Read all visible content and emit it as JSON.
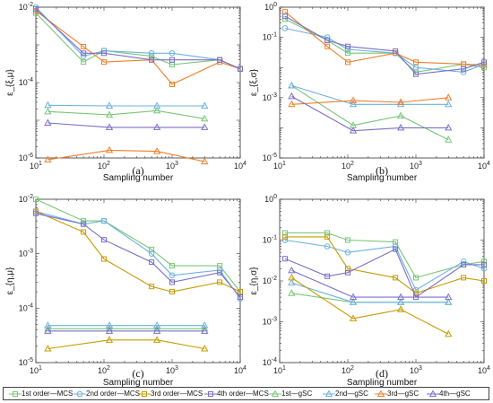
{
  "legend": [
    {
      "label": "1st order—MCS",
      "color": "#77c677",
      "marker": "square",
      "line": true
    },
    {
      "label": "2nd order—MCS",
      "color": "#6cb1e0",
      "marker": "circle",
      "line": true
    },
    {
      "label": "3rd order—MCS",
      "color": "#c69b00",
      "marker": "square",
      "line": true
    },
    {
      "label": "4th order—MCS",
      "color": "#7a6fc8",
      "marker": "square",
      "line": true
    },
    {
      "label": "1st—gSC",
      "color": "#77c677",
      "marker": "triangle",
      "line": true
    },
    {
      "label": "2nd—gSC",
      "color": "#6cb1e0",
      "marker": "triangle",
      "line": true
    },
    {
      "label": "3rd—gSC",
      "color": "#f07f2a",
      "marker": "triangle",
      "line": true
    },
    {
      "label": "4th—gSC",
      "color": "#7a6fc8",
      "marker": "triangle",
      "line": true
    }
  ],
  "chart_data": [
    {
      "panel_label": "(a)",
      "type": "line",
      "xlabel": "Sampling number",
      "ylabel": "ε_{ξ,μ}",
      "xscale": "log",
      "yscale": "log",
      "xlim": [
        10,
        10000
      ],
      "ylim": [
        1e-06,
        0.01
      ],
      "xticks": [
        "10^1",
        "10^2",
        "10^3",
        "10^4"
      ],
      "yticks": [
        "10^-6",
        "10^-4",
        "10^-2"
      ],
      "series": [
        {
          "name": "1st order—MCS",
          "x": [
            10,
            50,
            100,
            500,
            1000,
            5000,
            10000
          ],
          "y": [
            0.007,
            0.00035,
            0.0007,
            0.0005,
            0.0003,
            0.0004,
            0.00023
          ],
          "color": "#77c677",
          "marker": "square"
        },
        {
          "name": "2nd order—MCS",
          "x": [
            10,
            50,
            100,
            500,
            1000,
            5000,
            10000
          ],
          "y": [
            0.01,
            0.0005,
            0.0007,
            0.0006,
            0.0006,
            0.0004,
            0.00023
          ],
          "color": "#6cb1e0",
          "marker": "circle"
        },
        {
          "name": "3rd order—MCS",
          "x": [
            10,
            50,
            100,
            500,
            1000,
            5000,
            10000
          ],
          "y": [
            0.008,
            0.0009,
            0.00035,
            0.0004,
            9e-05,
            0.00035,
            0.00023
          ],
          "color": "#f07f2a",
          "marker": "square"
        },
        {
          "name": "4th order—MCS",
          "x": [
            10,
            50,
            100,
            500,
            1000,
            5000,
            10000
          ],
          "y": [
            0.009,
            0.0006,
            0.0006,
            0.0004,
            0.0004,
            0.0004,
            0.00023
          ],
          "color": "#7a6fc8",
          "marker": "square"
        },
        {
          "name": "1st—gSC",
          "x": [
            15,
            120,
            600,
            3000
          ],
          "y": [
            1.7e-05,
            1.4e-05,
            1.8e-05,
            1.1e-05
          ],
          "color": "#77c677",
          "marker": "triangle"
        },
        {
          "name": "2nd—gSC",
          "x": [
            15,
            120,
            600,
            3000
          ],
          "y": [
            2.5e-05,
            2.4e-05,
            2.4e-05,
            2.4e-05
          ],
          "color": "#6cb1e0",
          "marker": "triangle"
        },
        {
          "name": "3rd—gSC",
          "x": [
            15,
            120,
            600,
            3000
          ],
          "y": [
            9e-07,
            1.6e-06,
            1.5e-06,
            8e-07
          ],
          "color": "#f07f2a",
          "marker": "triangle"
        },
        {
          "name": "4th—gSC",
          "x": [
            15,
            120,
            600,
            3000
          ],
          "y": [
            8.5e-06,
            6.5e-06,
            6.5e-06,
            6.5e-06
          ],
          "color": "#7a6fc8",
          "marker": "triangle"
        }
      ]
    },
    {
      "panel_label": "(b)",
      "type": "line",
      "xlabel": "Sampling number",
      "ylabel": "ε_{ξ,σ}",
      "xscale": "log",
      "yscale": "log",
      "xlim": [
        10,
        10000
      ],
      "ylim": [
        1e-05,
        1
      ],
      "xticks": [
        "10^1",
        "10^2",
        "10^3",
        "10^4"
      ],
      "yticks": [
        "10^-5",
        "10^-3",
        "10^-1",
        "10^0"
      ],
      "series": [
        {
          "name": "1st order—MCS",
          "x": [
            12,
            50,
            100,
            500,
            1000,
            5000,
            10000
          ],
          "y": [
            0.4,
            0.08,
            0.03,
            0.03,
            0.007,
            0.013,
            0.01
          ],
          "color": "#77c677",
          "marker": "square"
        },
        {
          "name": "2nd order—MCS",
          "x": [
            12,
            50,
            100,
            500,
            1000,
            5000,
            10000
          ],
          "y": [
            0.2,
            0.1,
            0.04,
            0.03,
            0.01,
            0.007,
            0.013
          ],
          "color": "#6cb1e0",
          "marker": "circle"
        },
        {
          "name": "3rd order—MCS",
          "x": [
            12,
            50,
            100,
            500,
            1000,
            5000,
            10000
          ],
          "y": [
            0.7,
            0.05,
            0.015,
            0.03,
            0.015,
            0.013,
            0.012
          ],
          "color": "#f07f2a",
          "marker": "square"
        },
        {
          "name": "4th order—MCS",
          "x": [
            12,
            50,
            100,
            500,
            1000,
            5000,
            10000
          ],
          "y": [
            0.5,
            0.08,
            0.05,
            0.035,
            0.006,
            0.009,
            0.015
          ],
          "color": "#7a6fc8",
          "marker": "square"
        },
        {
          "name": "1st—gSC",
          "x": [
            15,
            120,
            600,
            3000
          ],
          "y": [
            0.0025,
            0.00012,
            0.00025,
            4e-05
          ],
          "color": "#77c677",
          "marker": "triangle"
        },
        {
          "name": "2nd—gSC",
          "x": [
            15,
            120,
            600,
            3000
          ],
          "y": [
            0.0025,
            0.0006,
            0.0006,
            0.0006
          ],
          "color": "#6cb1e0",
          "marker": "triangle"
        },
        {
          "name": "3rd—gSC",
          "x": [
            15,
            120,
            600,
            3000
          ],
          "y": [
            0.0006,
            0.0008,
            0.0007,
            0.001
          ],
          "color": "#f07f2a",
          "marker": "triangle"
        },
        {
          "name": "4th—gSC",
          "x": [
            15,
            120,
            600,
            3000
          ],
          "y": [
            0.0011,
            8e-05,
            0.0001,
            0.0001
          ],
          "color": "#7a6fc8",
          "marker": "triangle"
        }
      ]
    },
    {
      "panel_label": "(c)",
      "type": "line",
      "xlabel": "Sampling number",
      "ylabel": "ε_{η,μ}",
      "xscale": "log",
      "yscale": "log",
      "xlim": [
        10,
        10000
      ],
      "ylim": [
        1e-05,
        0.01
      ],
      "xticks": [
        "10^1",
        "10^2",
        "10^3",
        "10^4"
      ],
      "yticks": [
        "10^-5",
        "10^-4",
        "10^-3",
        "10^-2"
      ],
      "series": [
        {
          "name": "1st order—MCS",
          "x": [
            10,
            50,
            100,
            500,
            1000,
            5000,
            10000
          ],
          "y": [
            0.01,
            0.004,
            0.004,
            0.0012,
            0.0006,
            0.0006,
            0.0002
          ],
          "color": "#77c677",
          "marker": "square"
        },
        {
          "name": "2nd order—MCS",
          "x": [
            10,
            50,
            100,
            500,
            1000,
            5000,
            10000
          ],
          "y": [
            0.006,
            0.0035,
            0.004,
            0.001,
            0.0004,
            0.0005,
            0.00015
          ],
          "color": "#6cb1e0",
          "marker": "circle"
        },
        {
          "name": "3rd order—MCS",
          "x": [
            10,
            50,
            100,
            500,
            1000,
            5000,
            10000
          ],
          "y": [
            0.006,
            0.0025,
            0.0008,
            0.00025,
            0.0002,
            0.0003,
            0.0002
          ],
          "color": "#c69b00",
          "marker": "square"
        },
        {
          "name": "4th order—MCS",
          "x": [
            10,
            50,
            100,
            500,
            1000,
            5000,
            10000
          ],
          "y": [
            0.0055,
            0.0035,
            0.0018,
            0.0007,
            0.0003,
            0.00045,
            0.00016
          ],
          "color": "#7a6fc8",
          "marker": "square"
        },
        {
          "name": "1st—gSC",
          "x": [
            15,
            120,
            600,
            3000
          ],
          "y": [
            4.2e-05,
            4.2e-05,
            4.2e-05,
            4.2e-05
          ],
          "color": "#77c677",
          "marker": "triangle"
        },
        {
          "name": "2nd—gSC",
          "x": [
            15,
            120,
            600,
            3000
          ],
          "y": [
            4.8e-05,
            4.8e-05,
            4.8e-05,
            4.8e-05
          ],
          "color": "#6cb1e0",
          "marker": "triangle"
        },
        {
          "name": "3rd—gSC",
          "x": [
            15,
            120,
            600,
            3000
          ],
          "y": [
            1.8e-05,
            2.6e-05,
            2.6e-05,
            1.8e-05
          ],
          "color": "#c69b00",
          "marker": "triangle"
        },
        {
          "name": "4th—gSC",
          "x": [
            15,
            120,
            600,
            3000
          ],
          "y": [
            3.8e-05,
            3.8e-05,
            3.8e-05,
            3.8e-05
          ],
          "color": "#7a6fc8",
          "marker": "triangle"
        }
      ]
    },
    {
      "panel_label": "(d)",
      "type": "line",
      "xlabel": "Sampling number",
      "ylabel": "ε_{η,σ}",
      "xscale": "log",
      "yscale": "log",
      "xlim": [
        10,
        10000
      ],
      "ylim": [
        0.0001,
        1
      ],
      "xticks": [
        "10^1",
        "10^2",
        "10^3",
        "10^4"
      ],
      "yticks": [
        "10^-4",
        "10^-3",
        "10^-2",
        "10^-1",
        "10^0"
      ],
      "series": [
        {
          "name": "1st order—MCS",
          "x": [
            12,
            50,
            100,
            500,
            1000,
            5000,
            10000
          ],
          "y": [
            0.15,
            0.15,
            0.1,
            0.09,
            0.012,
            0.025,
            0.03
          ],
          "color": "#77c677",
          "marker": "square"
        },
        {
          "name": "2nd order—MCS",
          "x": [
            12,
            50,
            100,
            500,
            1000,
            5000,
            10000
          ],
          "y": [
            0.1,
            0.07,
            0.05,
            0.07,
            0.006,
            0.03,
            0.02
          ],
          "color": "#6cb1e0",
          "marker": "circle"
        },
        {
          "name": "3rd order—MCS",
          "x": [
            12,
            50,
            100,
            500,
            1000,
            5000,
            10000
          ],
          "y": [
            0.12,
            0.12,
            0.02,
            0.012,
            0.005,
            0.012,
            0.01
          ],
          "color": "#c69b00",
          "marker": "square"
        },
        {
          "name": "4th order—MCS",
          "x": [
            12,
            50,
            100,
            500,
            1000,
            5000,
            10000
          ],
          "y": [
            0.035,
            0.013,
            0.016,
            0.06,
            0.004,
            0.025,
            0.025
          ],
          "color": "#7a6fc8",
          "marker": "square"
        },
        {
          "name": "1st—gSC",
          "x": [
            15,
            120,
            600,
            3000
          ],
          "y": [
            0.005,
            0.003,
            0.003,
            0.003
          ],
          "color": "#77c677",
          "marker": "triangle"
        },
        {
          "name": "2nd—gSC",
          "x": [
            15,
            120,
            600,
            3000
          ],
          "y": [
            0.009,
            0.003,
            0.003,
            0.003
          ],
          "color": "#6cb1e0",
          "marker": "triangle"
        },
        {
          "name": "3rd—gSC",
          "x": [
            15,
            120,
            600,
            3000
          ],
          "y": [
            0.012,
            0.0012,
            0.002,
            0.0005
          ],
          "color": "#c69b00",
          "marker": "triangle"
        },
        {
          "name": "4th—gSC",
          "x": [
            15,
            120,
            600,
            3000
          ],
          "y": [
            0.018,
            0.004,
            0.004,
            0.004
          ],
          "color": "#7a6fc8",
          "marker": "triangle"
        }
      ]
    }
  ]
}
